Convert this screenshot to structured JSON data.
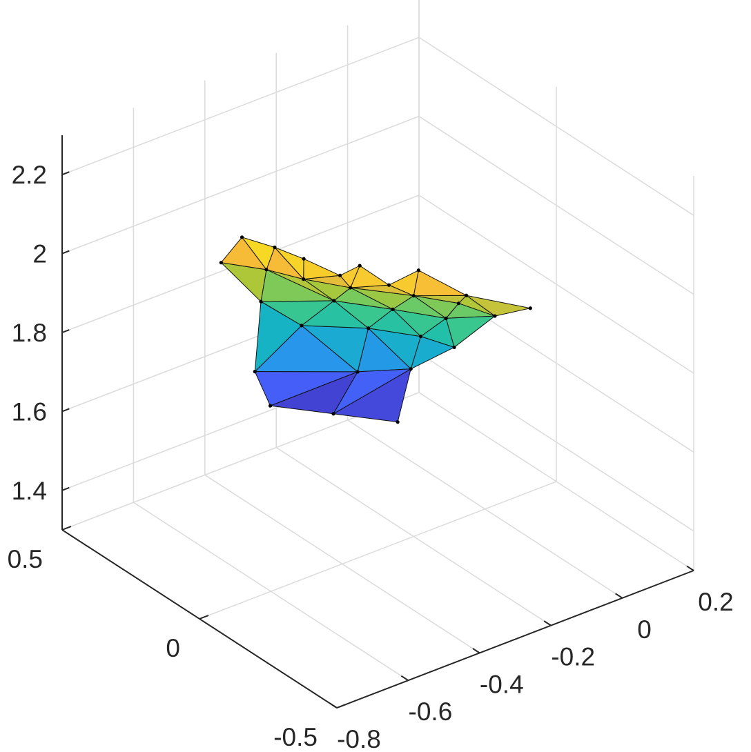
{
  "chart_data": {
    "type": "surface",
    "title": "",
    "xlabel": "",
    "ylabel": "",
    "zlabel": "",
    "xlim": [
      -0.8,
      0.2
    ],
    "ylim": [
      -0.5,
      0.5
    ],
    "zlim": [
      1.3,
      2.3
    ],
    "x_ticks": [
      {
        "value": -0.8,
        "label": "-0.8"
      },
      {
        "value": -0.6,
        "label": "-0.6"
      },
      {
        "value": -0.4,
        "label": "-0.4"
      },
      {
        "value": -0.2,
        "label": "-0.2"
      },
      {
        "value": 0,
        "label": "0"
      },
      {
        "value": 0.2,
        "label": "0.2"
      }
    ],
    "y_ticks": [
      {
        "value": -0.5,
        "label": "-0.5"
      },
      {
        "value": 0,
        "label": "0"
      },
      {
        "value": 0.5,
        "label": "0.5"
      }
    ],
    "z_ticks": [
      {
        "value": 1.4,
        "label": "1.4"
      },
      {
        "value": 1.6,
        "label": "1.6"
      },
      {
        "value": 1.8,
        "label": "1.8"
      },
      {
        "value": 2,
        "label": "2"
      },
      {
        "value": 2.2,
        "label": "2.2"
      }
    ],
    "grid": true,
    "colormap": "parula",
    "edge_color": "#000000",
    "mesh": {
      "vertices": [
        [
          -0.45,
          0.3,
          2.01
        ],
        [
          -0.42,
          0.22,
          2.01
        ],
        [
          -0.4,
          0.14,
          2.01
        ],
        [
          -0.32,
          0.04,
          2.01
        ],
        [
          -0.24,
          -0.07,
          2.02
        ],
        [
          -0.3,
          -0.04,
          1.99
        ],
        [
          -0.36,
          0.06,
          1.99
        ],
        [
          -0.16,
          -0.14,
          1.96
        ],
        [
          -0.05,
          -0.23,
          1.93
        ],
        [
          -0.47,
          0.35,
          1.93
        ],
        [
          -0.42,
          0.25,
          1.94
        ],
        [
          -0.37,
          0.18,
          1.93
        ],
        [
          -0.3,
          0.1,
          1.92
        ],
        [
          -0.2,
          0.0,
          1.91
        ],
        [
          -0.12,
          -0.06,
          1.89
        ],
        [
          -0.08,
          -0.14,
          1.88
        ],
        [
          -0.3,
          0.16,
          1.86
        ],
        [
          -0.42,
          0.27,
          1.85
        ],
        [
          -0.22,
          0.05,
          1.86
        ],
        [
          -0.14,
          -0.04,
          1.85
        ],
        [
          -0.25,
          0.1,
          1.8
        ],
        [
          -0.36,
          0.2,
          1.8
        ],
        [
          -0.18,
          0.0,
          1.8
        ],
        [
          -0.14,
          -0.07,
          1.79
        ],
        [
          -0.46,
          0.24,
          1.7
        ],
        [
          -0.28,
          0.1,
          1.7
        ],
        [
          -0.2,
          0.01,
          1.72
        ],
        [
          -0.44,
          0.21,
          1.62
        ],
        [
          -0.34,
          0.11,
          1.61
        ],
        [
          -0.26,
          -0.02,
          1.62
        ]
      ],
      "triangles": [
        [
          0,
          1,
          10
        ],
        [
          0,
          10,
          9
        ],
        [
          1,
          2,
          11
        ],
        [
          1,
          11,
          10
        ],
        [
          2,
          6,
          11
        ],
        [
          6,
          3,
          12
        ],
        [
          6,
          12,
          11
        ],
        [
          3,
          5,
          12
        ],
        [
          5,
          4,
          13
        ],
        [
          5,
          13,
          12
        ],
        [
          4,
          7,
          13
        ],
        [
          7,
          14,
          13
        ],
        [
          7,
          8,
          15
        ],
        [
          7,
          15,
          14
        ],
        [
          9,
          10,
          17
        ],
        [
          10,
          11,
          16
        ],
        [
          10,
          16,
          17
        ],
        [
          11,
          12,
          16
        ],
        [
          12,
          18,
          16
        ],
        [
          12,
          13,
          18
        ],
        [
          13,
          19,
          18
        ],
        [
          13,
          14,
          19
        ],
        [
          14,
          15,
          19
        ],
        [
          15,
          23,
          19
        ],
        [
          17,
          16,
          21
        ],
        [
          16,
          20,
          21
        ],
        [
          16,
          18,
          20
        ],
        [
          18,
          22,
          20
        ],
        [
          18,
          19,
          22
        ],
        [
          19,
          23,
          22
        ],
        [
          17,
          21,
          24
        ],
        [
          21,
          25,
          24
        ],
        [
          21,
          20,
          25
        ],
        [
          20,
          26,
          25
        ],
        [
          20,
          22,
          26
        ],
        [
          22,
          23,
          26
        ],
        [
          24,
          25,
          27
        ],
        [
          25,
          28,
          27
        ],
        [
          25,
          26,
          28
        ],
        [
          26,
          29,
          28
        ]
      ]
    }
  }
}
